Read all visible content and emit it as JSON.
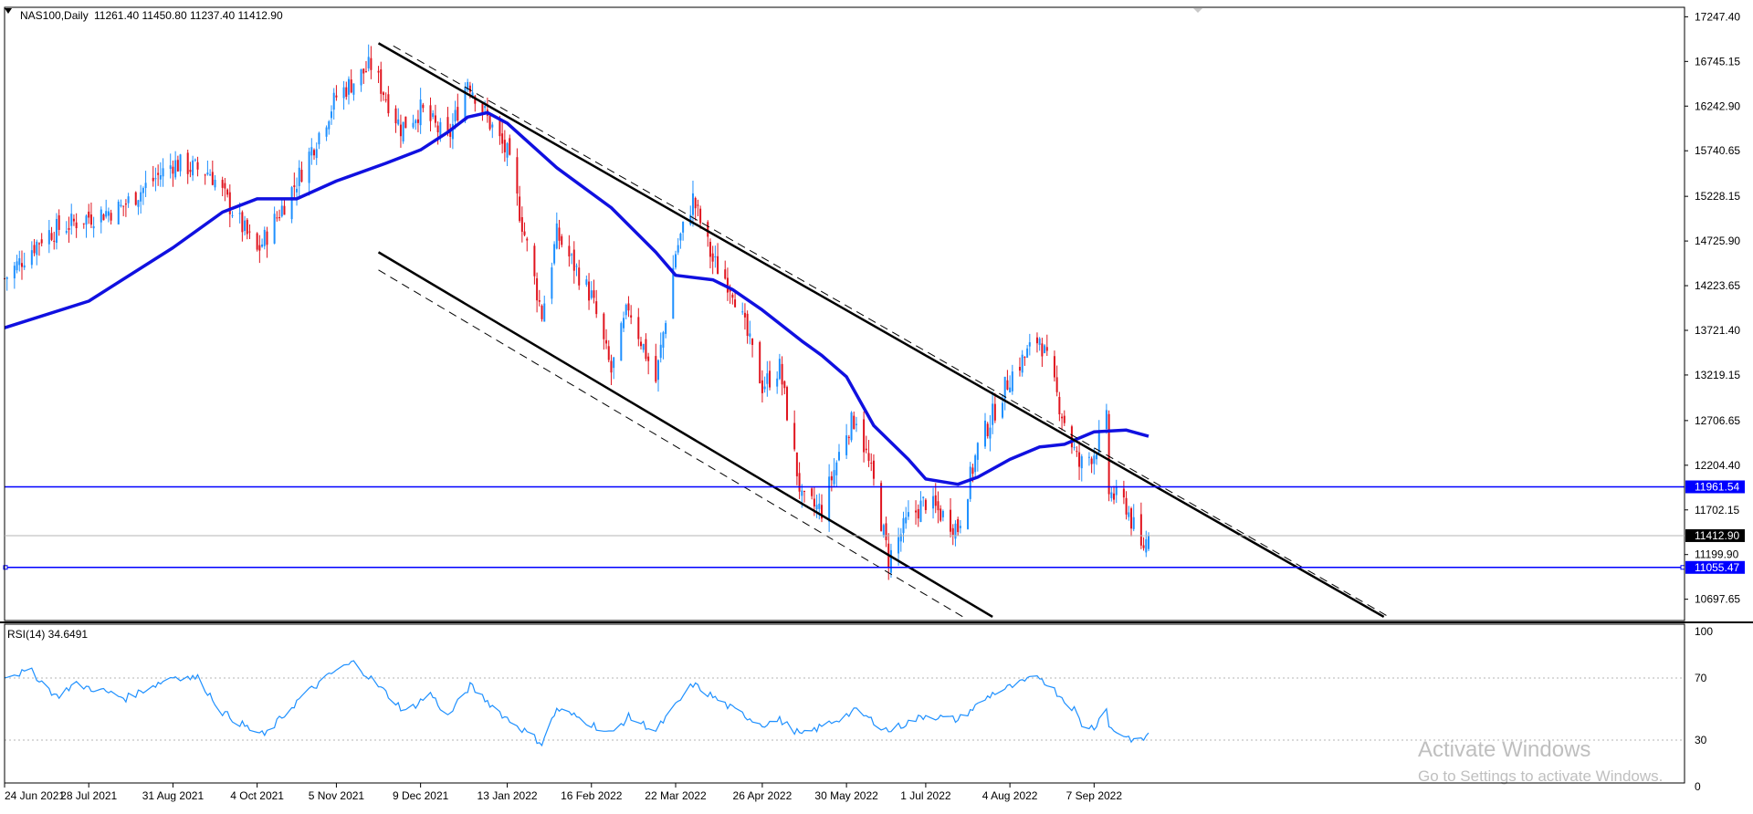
{
  "header": {
    "symbol": "NAS100,Daily",
    "ohlc": "11261.40 11450.80 11237.40 11412.90"
  },
  "rsi_header": "RSI(14) 34.6491",
  "watermark": {
    "line1": "Activate Windows",
    "line2": "Go to Settings to activate Windows."
  },
  "colors": {
    "bull": "#1e90ff",
    "bear": "#e0141e",
    "ma": "#1010e0",
    "hline": "#0000ff",
    "rsi": "#1e90ff",
    "channel": "#000000"
  },
  "chart_data": [
    {
      "type": "candlestick",
      "symbol": "NAS100",
      "timeframe": "Daily",
      "x_tick_labels": [
        "24 Jun 2021",
        "28 Jul 2021",
        "31 Aug 2021",
        "4 Oct 2021",
        "5 Nov 2021",
        "9 Dec 2021",
        "13 Jan 2022",
        "16 Feb 2022",
        "22 Mar 2022",
        "26 Apr 2022",
        "30 May 2022",
        "1 Jul 2022",
        "4 Aug 2022",
        "7 Sep 2022"
      ],
      "y_tick_labels": [
        "17247.40",
        "16745.15",
        "16242.90",
        "15740.65",
        "15228.15",
        "14725.90",
        "14223.65",
        "13721.40",
        "13219.15",
        "12706.65",
        "12204.40",
        "11702.15",
        "11199.90",
        "10697.65"
      ],
      "ylim": [
        10500,
        17250
      ],
      "last_price": 11412.9,
      "horizontal_lines": [
        {
          "label": "11961.54",
          "value": 11961.54
        },
        {
          "label": "11055.47",
          "value": 11055.47
        }
      ],
      "price_anchors": [
        {
          "date": "2021-06-24",
          "close": 14300
        },
        {
          "date": "2021-07-10",
          "close": 14800
        },
        {
          "date": "2021-07-28",
          "close": 15000
        },
        {
          "date": "2021-08-10",
          "close": 15100
        },
        {
          "date": "2021-08-31",
          "close": 15600
        },
        {
          "date": "2021-09-15",
          "close": 15500
        },
        {
          "date": "2021-10-04",
          "close": 14600
        },
        {
          "date": "2021-10-20",
          "close": 15400
        },
        {
          "date": "2021-11-05",
          "close": 16350
        },
        {
          "date": "2021-11-19",
          "close": 16700
        },
        {
          "date": "2021-12-01",
          "close": 16000
        },
        {
          "date": "2021-12-09",
          "close": 16200
        },
        {
          "date": "2021-12-20",
          "close": 15850
        },
        {
          "date": "2021-12-28",
          "close": 16550
        },
        {
          "date": "2022-01-05",
          "close": 16100
        },
        {
          "date": "2022-01-13",
          "close": 15700
        },
        {
          "date": "2022-01-27",
          "close": 13900
        },
        {
          "date": "2022-02-02",
          "close": 14800
        },
        {
          "date": "2022-02-10",
          "close": 14400
        },
        {
          "date": "2022-02-16",
          "close": 14100
        },
        {
          "date": "2022-02-24",
          "close": 13250
        },
        {
          "date": "2022-03-03",
          "close": 14000
        },
        {
          "date": "2022-03-14",
          "close": 13150
        },
        {
          "date": "2022-03-22",
          "close": 14600
        },
        {
          "date": "2022-03-29",
          "close": 15200
        },
        {
          "date": "2022-04-06",
          "close": 14500
        },
        {
          "date": "2022-04-14",
          "close": 14200
        },
        {
          "date": "2022-04-26",
          "close": 13100
        },
        {
          "date": "2022-05-03",
          "close": 13300
        },
        {
          "date": "2022-05-12",
          "close": 11800
        },
        {
          "date": "2022-05-20",
          "close": 11700
        },
        {
          "date": "2022-05-30",
          "close": 12600
        },
        {
          "date": "2022-06-03",
          "close": 12750
        },
        {
          "date": "2022-06-10",
          "close": 12000
        },
        {
          "date": "2022-06-16",
          "close": 11150
        },
        {
          "date": "2022-06-24",
          "close": 11600
        },
        {
          "date": "2022-07-01",
          "close": 11800
        },
        {
          "date": "2022-07-14",
          "close": 11500
        },
        {
          "date": "2022-07-22",
          "close": 12400
        },
        {
          "date": "2022-08-04",
          "close": 13200
        },
        {
          "date": "2022-08-16",
          "close": 13650
        },
        {
          "date": "2022-08-26",
          "close": 12700
        },
        {
          "date": "2022-09-01",
          "close": 12200
        },
        {
          "date": "2022-09-07",
          "close": 12350
        },
        {
          "date": "2022-09-12",
          "close": 12700
        },
        {
          "date": "2022-09-13",
          "close": 11900
        },
        {
          "date": "2022-09-20",
          "close": 11750
        },
        {
          "date": "2022-09-26",
          "close": 11250
        },
        {
          "date": "2022-09-29",
          "close": 11412.9
        }
      ],
      "moving_average": [
        {
          "date": "2021-06-24",
          "value": 13750
        },
        {
          "date": "2021-07-28",
          "value": 14050
        },
        {
          "date": "2021-08-31",
          "value": 14650
        },
        {
          "date": "2021-09-20",
          "value": 15050
        },
        {
          "date": "2021-10-04",
          "value": 15200
        },
        {
          "date": "2021-10-20",
          "value": 15200
        },
        {
          "date": "2021-11-05",
          "value": 15400
        },
        {
          "date": "2021-11-25",
          "value": 15600
        },
        {
          "date": "2021-12-09",
          "value": 15750
        },
        {
          "date": "2021-12-20",
          "value": 15950
        },
        {
          "date": "2021-12-28",
          "value": 16120
        },
        {
          "date": "2022-01-05",
          "value": 16170
        },
        {
          "date": "2022-01-13",
          "value": 16050
        },
        {
          "date": "2022-02-02",
          "value": 15550
        },
        {
          "date": "2022-02-24",
          "value": 15100
        },
        {
          "date": "2022-03-14",
          "value": 14600
        },
        {
          "date": "2022-03-22",
          "value": 14340
        },
        {
          "date": "2022-04-06",
          "value": 14290
        },
        {
          "date": "2022-04-14",
          "value": 14180
        },
        {
          "date": "2022-04-26",
          "value": 13950
        },
        {
          "date": "2022-05-12",
          "value": 13600
        },
        {
          "date": "2022-05-20",
          "value": 13440
        },
        {
          "date": "2022-05-30",
          "value": 13200
        },
        {
          "date": "2022-06-10",
          "value": 12650
        },
        {
          "date": "2022-06-24",
          "value": 12270
        },
        {
          "date": "2022-07-01",
          "value": 12050
        },
        {
          "date": "2022-07-14",
          "value": 11990
        },
        {
          "date": "2022-07-22",
          "value": 12070
        },
        {
          "date": "2022-08-04",
          "value": 12270
        },
        {
          "date": "2022-08-16",
          "value": 12410
        },
        {
          "date": "2022-08-26",
          "value": 12440
        },
        {
          "date": "2022-09-07",
          "value": 12580
        },
        {
          "date": "2022-09-20",
          "value": 12600
        },
        {
          "date": "2022-09-29",
          "value": 12530
        }
      ],
      "channel_lines": [
        {
          "style": "solid",
          "from": {
            "date": "2021-11-22",
            "value": 16950
          },
          "to": {
            "date": "2023-01-02",
            "value": 10500
          }
        },
        {
          "style": "dashed",
          "from": {
            "date": "2021-11-28",
            "value": 16920
          },
          "to": {
            "date": "2023-01-04",
            "value": 10500
          }
        },
        {
          "style": "solid",
          "from": {
            "date": "2021-11-22",
            "value": 14600
          },
          "to": {
            "date": "2022-07-28",
            "value": 10500
          }
        },
        {
          "style": "dashed",
          "from": {
            "date": "2021-11-22",
            "value": 14400
          },
          "to": {
            "date": "2022-07-16",
            "value": 10500
          }
        }
      ]
    },
    {
      "type": "line",
      "indicator": "RSI(14)",
      "value": 34.6491,
      "ylim": [
        0,
        100
      ],
      "y_tick_labels": [
        "100",
        "70",
        "30",
        "0"
      ],
      "levels": [
        70,
        30
      ],
      "x_tick_labels": [
        "24 Jun 2021",
        "28 Jul 2021",
        "31 Aug 2021",
        "4 Oct 2021",
        "5 Nov 2021",
        "9 Dec 2021",
        "13 Jan 2022",
        "16 Feb 2022",
        "22 Mar 2022",
        "26 Apr 2022",
        "30 May 2022",
        "1 Jul 2022",
        "4 Aug 2022",
        "7 Sep 2022"
      ],
      "anchors": [
        {
          "date": "2021-06-24",
          "value": 72
        },
        {
          "date": "2021-07-05",
          "value": 74
        },
        {
          "date": "2021-07-15",
          "value": 58
        },
        {
          "date": "2021-07-22",
          "value": 66
        },
        {
          "date": "2021-08-02",
          "value": 62
        },
        {
          "date": "2021-08-12",
          "value": 57
        },
        {
          "date": "2021-08-31",
          "value": 71
        },
        {
          "date": "2021-09-10",
          "value": 70
        },
        {
          "date": "2021-09-20",
          "value": 48
        },
        {
          "date": "2021-10-01",
          "value": 37
        },
        {
          "date": "2021-10-07",
          "value": 33
        },
        {
          "date": "2021-10-22",
          "value": 58
        },
        {
          "date": "2021-11-05",
          "value": 75
        },
        {
          "date": "2021-11-12",
          "value": 80
        },
        {
          "date": "2021-11-24",
          "value": 62
        },
        {
          "date": "2021-12-03",
          "value": 48
        },
        {
          "date": "2021-12-13",
          "value": 60
        },
        {
          "date": "2021-12-20",
          "value": 45
        },
        {
          "date": "2021-12-29",
          "value": 65
        },
        {
          "date": "2022-01-12",
          "value": 45
        },
        {
          "date": "2022-01-27",
          "value": 28
        },
        {
          "date": "2022-02-02",
          "value": 50
        },
        {
          "date": "2022-02-10",
          "value": 45
        },
        {
          "date": "2022-02-24",
          "value": 34
        },
        {
          "date": "2022-03-03",
          "value": 45
        },
        {
          "date": "2022-03-14",
          "value": 36
        },
        {
          "date": "2022-03-29",
          "value": 66
        },
        {
          "date": "2022-04-14",
          "value": 50
        },
        {
          "date": "2022-04-26",
          "value": 40
        },
        {
          "date": "2022-05-03",
          "value": 43
        },
        {
          "date": "2022-05-12",
          "value": 33
        },
        {
          "date": "2022-06-03",
          "value": 49
        },
        {
          "date": "2022-06-16",
          "value": 36
        },
        {
          "date": "2022-07-01",
          "value": 46
        },
        {
          "date": "2022-07-14",
          "value": 43
        },
        {
          "date": "2022-07-28",
          "value": 60
        },
        {
          "date": "2022-08-16",
          "value": 71
        },
        {
          "date": "2022-08-30",
          "value": 50
        },
        {
          "date": "2022-09-02",
          "value": 40
        },
        {
          "date": "2022-09-07",
          "value": 38
        },
        {
          "date": "2022-09-12",
          "value": 52
        },
        {
          "date": "2022-09-13",
          "value": 38
        },
        {
          "date": "2022-09-23",
          "value": 30
        },
        {
          "date": "2022-09-26",
          "value": 29
        },
        {
          "date": "2022-09-29",
          "value": 34.65
        }
      ]
    }
  ]
}
